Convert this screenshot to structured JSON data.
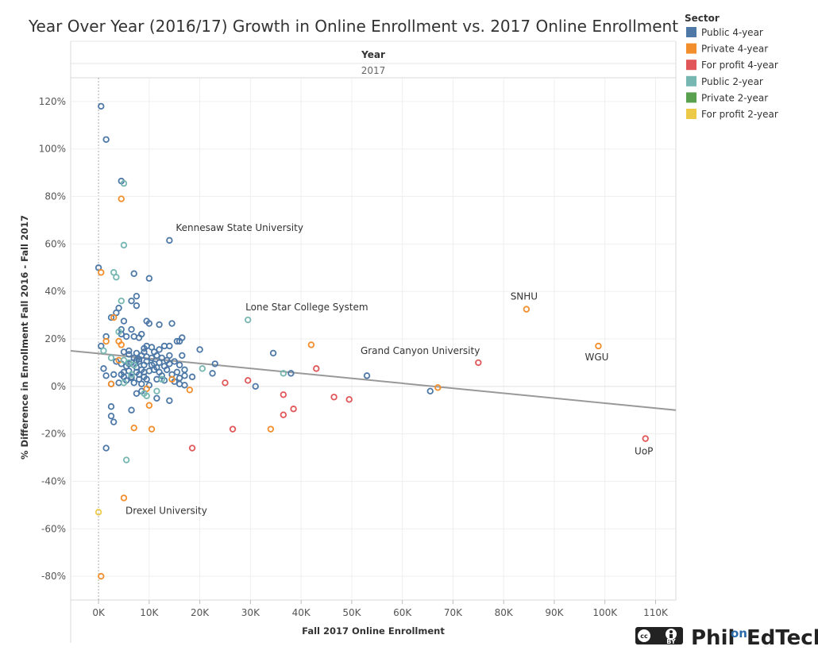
{
  "colors": {
    "public_4yr": "#4e79a7",
    "private_4yr": "#f28e2b",
    "forprofit_4yr": "#e15759",
    "public_2yr": "#76b7b2",
    "private_2yr": "#59a14f",
    "forprofit_2yr": "#edc948",
    "trend": "#999999"
  },
  "header": {
    "title": "Year",
    "value": "2017"
  },
  "legend": {
    "title": "Sector",
    "items": [
      {
        "key": "public_4yr",
        "label": "Public 4-year"
      },
      {
        "key": "private_4yr",
        "label": "Private 4-year"
      },
      {
        "key": "forprofit_4yr",
        "label": "For profit 4-year"
      },
      {
        "key": "public_2yr",
        "label": "Public 2-year"
      },
      {
        "key": "private_2yr",
        "label": "Private 2-year"
      },
      {
        "key": "forprofit_2yr",
        "label": "For profit 2-year"
      }
    ]
  },
  "logo": {
    "cc_label": "cc",
    "by_label": "BY",
    "brand_left": "Phil",
    "brand_on": "on",
    "brand_right": "EdTech"
  },
  "chart_data": {
    "type": "scatter",
    "title": "Year Over Year (2016/17) Growth in Online Enrollment vs. 2017 Online Enrollment",
    "xlabel": "Fall 2017 Online Enrollment",
    "ylabel": "% Difference in Enrollment Fall 2016 - Fall 2017",
    "xlim": [
      -5500,
      114000
    ],
    "ylim": [
      -90,
      130
    ],
    "x_ticks": [
      0,
      10000,
      20000,
      30000,
      40000,
      50000,
      60000,
      70000,
      80000,
      90000,
      100000,
      110000
    ],
    "x_tick_labels": [
      "0K",
      "10K",
      "20K",
      "30K",
      "40K",
      "50K",
      "60K",
      "70K",
      "80K",
      "90K",
      "100K",
      "110K"
    ],
    "y_ticks": [
      -80,
      -60,
      -40,
      -20,
      0,
      20,
      40,
      60,
      80,
      100,
      120
    ],
    "y_tick_labels": [
      "-80%",
      "-60%",
      "-40%",
      "-20%",
      "0%",
      "20%",
      "40%",
      "60%",
      "80%",
      "100%",
      "120%"
    ],
    "trend_line": {
      "x": [
        -5500,
        114000
      ],
      "y": [
        15,
        -10
      ]
    },
    "annotations": [
      {
        "text": "Kennesaw State University",
        "x": 14000,
        "y": 61.5,
        "dx": 8,
        "dy": -12
      },
      {
        "text": "Lone Star College System",
        "x": 29500,
        "y": 28,
        "dx": -3,
        "dy": -12
      },
      {
        "text": "SNHU",
        "x": 84500,
        "y": 32.5,
        "dx": -3,
        "dy": -12,
        "anchor": "middle"
      },
      {
        "text": "Grand Canyon University",
        "x": 75000,
        "y": 10,
        "dx": 2,
        "dy": -11,
        "anchor": "end"
      },
      {
        "text": "WGU",
        "x": 98700,
        "y": 17,
        "dx": -2,
        "dy": 18,
        "anchor": "middle"
      },
      {
        "text": "UoP",
        "x": 108000,
        "y": -22,
        "dx": -2,
        "dy": 20,
        "anchor": "middle"
      },
      {
        "text": "Drexel University",
        "x": 5000,
        "y": -47,
        "dx": 2,
        "dy": 20,
        "anchor": "start"
      }
    ],
    "series": [
      {
        "name": "Public 4-year",
        "key": "public_4yr",
        "points": [
          [
            500,
            118
          ],
          [
            1500,
            104
          ],
          [
            4500,
            86.5
          ],
          [
            14000,
            61.5
          ],
          [
            0,
            50
          ],
          [
            10000,
            45.5
          ],
          [
            7000,
            47.5
          ],
          [
            7500,
            38
          ],
          [
            6500,
            36
          ],
          [
            7500,
            34
          ],
          [
            4000,
            33
          ],
          [
            12000,
            26
          ],
          [
            10000,
            26.5
          ],
          [
            14500,
            26.5
          ],
          [
            9500,
            27.5
          ],
          [
            5000,
            27.5
          ],
          [
            2500,
            29
          ],
          [
            3500,
            31
          ],
          [
            16500,
            20.5
          ],
          [
            16000,
            19
          ],
          [
            15500,
            19
          ],
          [
            6500,
            24
          ],
          [
            4500,
            24
          ],
          [
            4500,
            22
          ],
          [
            5500,
            21
          ],
          [
            7000,
            21
          ],
          [
            8000,
            20.5
          ],
          [
            8500,
            22
          ],
          [
            1500,
            21
          ],
          [
            9500,
            17
          ],
          [
            10500,
            16.5
          ],
          [
            12000,
            15.5
          ],
          [
            14000,
            17
          ],
          [
            13000,
            17
          ],
          [
            9000,
            14.5
          ],
          [
            8500,
            13
          ],
          [
            11500,
            13
          ],
          [
            12500,
            12
          ],
          [
            14000,
            13
          ],
          [
            16500,
            13
          ],
          [
            20000,
            15.5
          ],
          [
            23000,
            9.5
          ],
          [
            22500,
            5.5
          ],
          [
            17000,
            7
          ],
          [
            18500,
            4
          ],
          [
            500,
            17
          ],
          [
            1000,
            7.5
          ],
          [
            3500,
            10.5
          ],
          [
            4500,
            9.5
          ],
          [
            5500,
            8.5
          ],
          [
            6000,
            9.5
          ],
          [
            6500,
            10
          ],
          [
            7000,
            9
          ],
          [
            7500,
            8
          ],
          [
            8000,
            10.5
          ],
          [
            9000,
            9
          ],
          [
            9500,
            10.5
          ],
          [
            10500,
            9
          ],
          [
            11500,
            8
          ],
          [
            13000,
            8.5
          ],
          [
            14000,
            9.5
          ],
          [
            16000,
            9
          ],
          [
            12000,
            6
          ],
          [
            11000,
            7
          ],
          [
            9000,
            6
          ],
          [
            7500,
            6
          ],
          [
            6000,
            6.5
          ],
          [
            4500,
            5
          ],
          [
            3000,
            5
          ],
          [
            1500,
            4.5
          ],
          [
            5000,
            4
          ],
          [
            6500,
            3.5
          ],
          [
            8000,
            3
          ],
          [
            9500,
            3
          ],
          [
            11500,
            3
          ],
          [
            13000,
            2.5
          ],
          [
            15000,
            2
          ],
          [
            16000,
            1
          ],
          [
            17000,
            0.5
          ],
          [
            10000,
            0.5
          ],
          [
            8500,
            1
          ],
          [
            7000,
            1.5
          ],
          [
            5500,
            2.5
          ],
          [
            4000,
            1.5
          ],
          [
            2500,
            1
          ],
          [
            7500,
            -3
          ],
          [
            8500,
            -2
          ],
          [
            11500,
            -5
          ],
          [
            6500,
            -10
          ],
          [
            2500,
            -8.5
          ],
          [
            2500,
            -12.5
          ],
          [
            3000,
            -15
          ],
          [
            14000,
            -6
          ],
          [
            1500,
            -26
          ],
          [
            34500,
            14
          ],
          [
            38000,
            5.5
          ],
          [
            31000,
            0
          ],
          [
            53000,
            4.5
          ],
          [
            65500,
            -2
          ],
          [
            5000,
            14.5
          ],
          [
            6000,
            13.5
          ],
          [
            7000,
            12
          ],
          [
            8000,
            11.5
          ],
          [
            9500,
            12.5
          ],
          [
            10500,
            12
          ],
          [
            12000,
            10
          ],
          [
            13500,
            11
          ],
          [
            15000,
            10.5
          ],
          [
            7500,
            14
          ],
          [
            9000,
            16
          ],
          [
            11000,
            14.5
          ],
          [
            6000,
            15
          ],
          [
            7500,
            11
          ],
          [
            8500,
            7
          ],
          [
            10000,
            6.5
          ],
          [
            8000,
            5
          ],
          [
            9000,
            4
          ],
          [
            6500,
            4
          ],
          [
            5000,
            6
          ],
          [
            12500,
            4.5
          ],
          [
            14500,
            5
          ],
          [
            17000,
            4.5
          ],
          [
            15500,
            6
          ],
          [
            11000,
            9.5
          ],
          [
            13500,
            7
          ],
          [
            16000,
            3.5
          ]
        ]
      },
      {
        "name": "Private 4-year",
        "key": "private_4yr",
        "points": [
          [
            4500,
            79
          ],
          [
            500,
            48
          ],
          [
            4000,
            19
          ],
          [
            4500,
            17.5
          ],
          [
            1500,
            19
          ],
          [
            3000,
            29
          ],
          [
            4000,
            11
          ],
          [
            2500,
            1
          ],
          [
            9500,
            -1
          ],
          [
            10000,
            -8
          ],
          [
            7000,
            -17.5
          ],
          [
            10500,
            -18
          ],
          [
            5000,
            -47
          ],
          [
            500,
            -80
          ],
          [
            14500,
            3
          ],
          [
            18000,
            -1.5
          ],
          [
            42000,
            17.5
          ],
          [
            34000,
            -18
          ],
          [
            67000,
            -0.5
          ],
          [
            84500,
            32.5
          ],
          [
            98700,
            17
          ]
        ]
      },
      {
        "name": "For profit 4-year",
        "key": "forprofit_4yr",
        "points": [
          [
            43000,
            7.5
          ],
          [
            29500,
            2.5
          ],
          [
            25000,
            1.5
          ],
          [
            36500,
            -3.5
          ],
          [
            36500,
            -12
          ],
          [
            38500,
            -9.5
          ],
          [
            46500,
            -4.5
          ],
          [
            49500,
            -5.5
          ],
          [
            26500,
            -18
          ],
          [
            18500,
            -26
          ],
          [
            75000,
            10
          ],
          [
            108000,
            -22
          ]
        ]
      },
      {
        "name": "Public 2-year",
        "key": "public_2yr",
        "points": [
          [
            5000,
            85.5
          ],
          [
            5000,
            59.5
          ],
          [
            3000,
            48
          ],
          [
            3500,
            46
          ],
          [
            4500,
            36
          ],
          [
            4000,
            23
          ],
          [
            1000,
            15
          ],
          [
            2500,
            12
          ],
          [
            5000,
            11
          ],
          [
            6000,
            10
          ],
          [
            7000,
            9
          ],
          [
            9000,
            -3
          ],
          [
            9500,
            -4
          ],
          [
            11500,
            -2
          ],
          [
            5500,
            -31
          ],
          [
            5000,
            1.5
          ],
          [
            29500,
            28
          ],
          [
            36500,
            5.5
          ],
          [
            20500,
            7.5
          ],
          [
            12500,
            3
          ],
          [
            6500,
            5
          ]
        ]
      },
      {
        "name": "For profit 2-year",
        "key": "forprofit_2yr",
        "points": [
          [
            0,
            -53
          ]
        ]
      }
    ]
  }
}
